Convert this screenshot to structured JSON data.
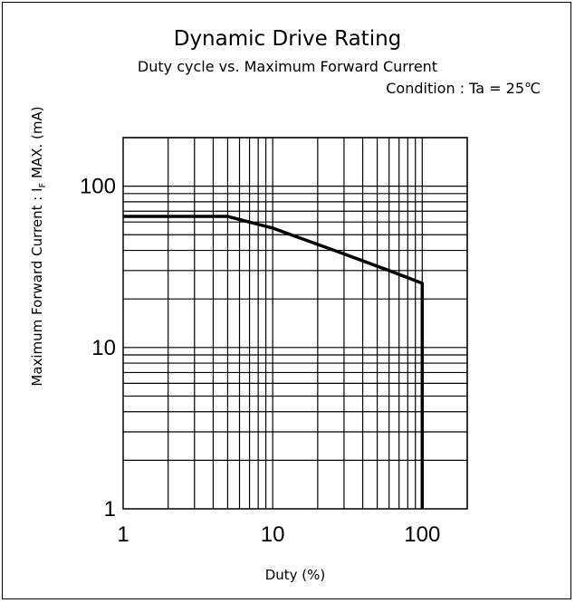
{
  "chart_data": {
    "type": "line",
    "title": "Dynamic Drive Rating",
    "subtitle": "Duty cycle vs. Maximum Forward Current",
    "condition": "Condition : Ta = 25℃",
    "xlabel": "Duty (%)",
    "ylabel_prefix": "Maximum Forward Current : I",
    "ylabel_sub": "F",
    "ylabel_suffix": " MAX. (mA)",
    "x_scale": "log",
    "y_scale": "log",
    "xlim": [
      1,
      200
    ],
    "ylim": [
      1,
      200
    ],
    "x_ticks": [
      {
        "value": 1,
        "label": "1"
      },
      {
        "value": 10,
        "label": "10"
      },
      {
        "value": 100,
        "label": "100"
      }
    ],
    "y_ticks": [
      {
        "value": 1,
        "label": "1"
      },
      {
        "value": 10,
        "label": "10"
      },
      {
        "value": 100,
        "label": "100"
      }
    ],
    "grid": true,
    "series": [
      {
        "x": [
          1,
          5,
          10,
          30,
          60,
          100,
          100
        ],
        "y": [
          65,
          65,
          55,
          38,
          30,
          25,
          1
        ],
        "color": "#000000"
      }
    ]
  }
}
